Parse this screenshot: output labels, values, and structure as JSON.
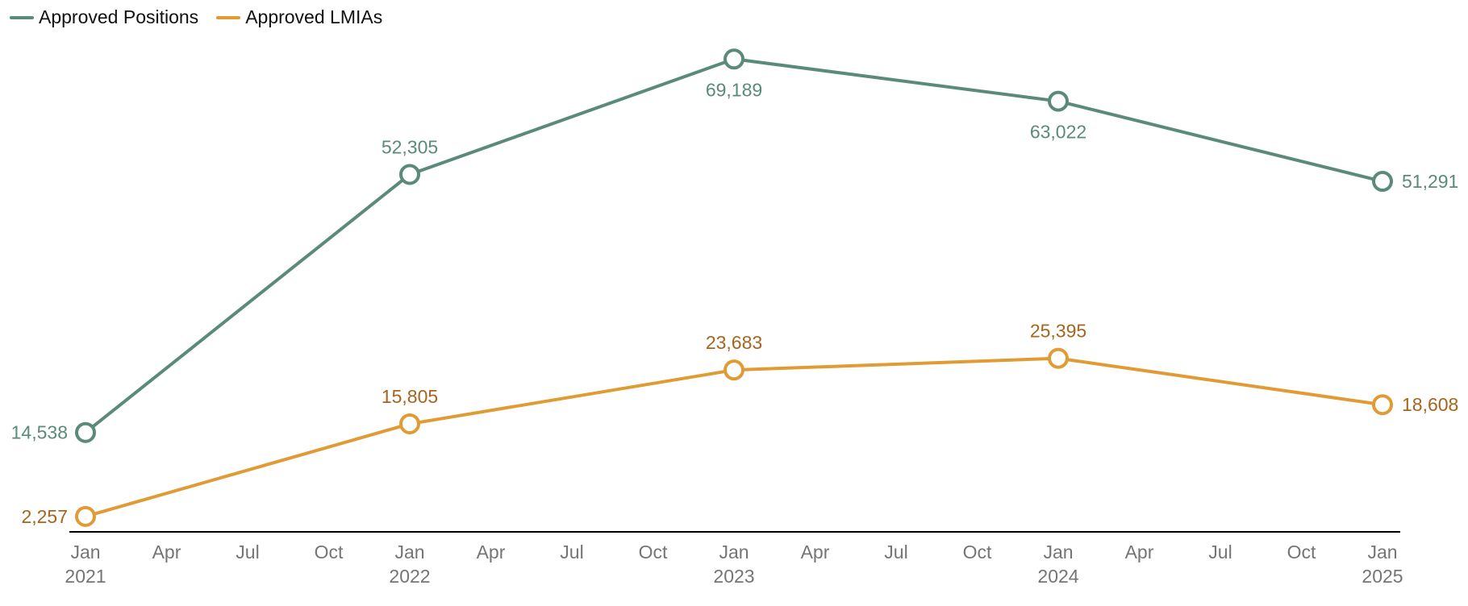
{
  "chart_data": {
    "type": "line",
    "title": "",
    "xlabel": "",
    "ylabel": "",
    "x": [
      "2021-01",
      "2022-01",
      "2023-01",
      "2024-01",
      "2025-01"
    ],
    "x_ticks": [
      {
        "label": "Jan",
        "year": "2021"
      },
      {
        "label": "Apr",
        "year": ""
      },
      {
        "label": "Jul",
        "year": ""
      },
      {
        "label": "Oct",
        "year": ""
      },
      {
        "label": "Jan",
        "year": "2022"
      },
      {
        "label": "Apr",
        "year": ""
      },
      {
        "label": "Jul",
        "year": ""
      },
      {
        "label": "Oct",
        "year": ""
      },
      {
        "label": "Jan",
        "year": "2023"
      },
      {
        "label": "Apr",
        "year": ""
      },
      {
        "label": "Jul",
        "year": ""
      },
      {
        "label": "Oct",
        "year": ""
      },
      {
        "label": "Jan",
        "year": "2024"
      },
      {
        "label": "Apr",
        "year": ""
      },
      {
        "label": "Jul",
        "year": ""
      },
      {
        "label": "Oct",
        "year": ""
      },
      {
        "label": "Jan",
        "year": "2025"
      }
    ],
    "ylim": [
      0,
      75000
    ],
    "grid": false,
    "legend_position": "top-left",
    "series": [
      {
        "name": "Approved Positions",
        "color": "#5a8a78",
        "label_color": "#5a8a78",
        "values": [
          14538,
          52305,
          69189,
          63022,
          51291
        ],
        "labels": [
          "14,538",
          "52,305",
          "69,189",
          "63,022",
          "51,291"
        ]
      },
      {
        "name": "Approved LMIAs",
        "color": "#e09b35",
        "label_color": "#a5651e",
        "values": [
          2257,
          15805,
          23683,
          25395,
          18608
        ],
        "labels": [
          "2,257",
          "15,805",
          "23,683",
          "25,395",
          "18,608"
        ]
      }
    ]
  }
}
